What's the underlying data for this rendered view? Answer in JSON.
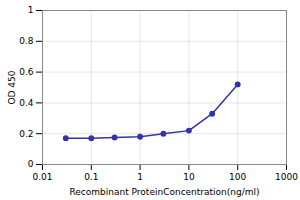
{
  "chart_data": {
    "type": "line",
    "x": [
      0.03,
      0.1,
      0.3,
      1,
      3,
      10,
      30,
      100
    ],
    "values": [
      0.17,
      0.17,
      0.175,
      0.18,
      0.2,
      0.22,
      0.33,
      0.52
    ],
    "color": "#3333aa",
    "marker": "circle",
    "xlabel": "Recombinant ProteinConcentration(ng/ml)",
    "ylabel": "OD 450",
    "log": "x",
    "xlim": [
      0.01,
      1000
    ],
    "xticks": [
      0.01,
      0.1,
      1,
      10,
      100,
      1000
    ],
    "ylim": [
      0,
      1
    ],
    "yticks": [
      0,
      0.2,
      0.4,
      0.6,
      0.8,
      1
    ],
    "grid": true
  }
}
